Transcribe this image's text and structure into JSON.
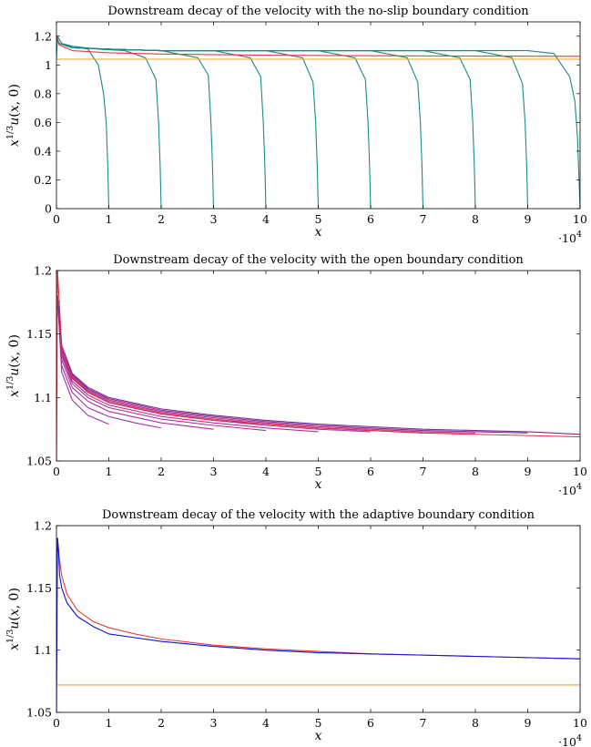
{
  "chart_data": [
    {
      "type": "line",
      "title": "Downstream decay of the velocity with the no-slip boundary condition",
      "xlabel": "x",
      "ylabel": "x^{1/3}u(x,0)",
      "x_multiplier": "·10^4",
      "xlim": [
        0,
        10
      ],
      "ylim": [
        0,
        1.3
      ],
      "xticks": [
        "0",
        "1",
        "2",
        "3",
        "4",
        "5",
        "6",
        "7",
        "8",
        "9",
        "10"
      ],
      "yticks": [
        "0",
        "0.2",
        "0.4",
        "0.6",
        "0.8",
        "1",
        "1.2"
      ],
      "ytick_values": [
        0,
        0.2,
        0.4,
        0.6,
        0.8,
        1.0,
        1.2
      ],
      "grid": false,
      "series": [
        {
          "color": "#1a8a8a",
          "x": [
            0,
            0.02,
            0.1,
            0.3,
            0.6,
            0.8,
            0.9,
            0.95,
            0.98,
            1.0
          ],
          "y": [
            1.05,
            1.2,
            1.15,
            1.13,
            1.11,
            1.0,
            0.8,
            0.6,
            0.3,
            0.0
          ]
        },
        {
          "color": "#1a8a8a",
          "x": [
            0,
            0.05,
            0.3,
            0.8,
            1.3,
            1.7,
            1.9,
            1.95,
            1.98,
            2.0
          ],
          "y": [
            1.2,
            1.15,
            1.13,
            1.11,
            1.1,
            1.05,
            0.9,
            0.6,
            0.3,
            0.0
          ]
        },
        {
          "color": "#1a8a8a",
          "x": [
            0,
            0.05,
            0.3,
            1,
            2,
            2.7,
            2.9,
            2.95,
            2.98,
            3.0
          ],
          "y": [
            1.2,
            1.15,
            1.12,
            1.11,
            1.1,
            1.05,
            0.93,
            0.6,
            0.3,
            0.0
          ]
        },
        {
          "color": "#1a8a8a",
          "x": [
            0,
            0.05,
            0.3,
            1,
            2,
            3,
            3.7,
            3.9,
            3.95,
            3.98,
            4.0
          ],
          "y": [
            1.2,
            1.15,
            1.12,
            1.11,
            1.1,
            1.1,
            1.05,
            0.92,
            0.6,
            0.3,
            0.0
          ]
        },
        {
          "color": "#1a8a8a",
          "x": [
            0,
            0.05,
            0.3,
            1,
            2,
            3,
            4,
            4.7,
            4.9,
            4.95,
            4.98,
            5.0
          ],
          "y": [
            1.2,
            1.15,
            1.12,
            1.11,
            1.1,
            1.1,
            1.1,
            1.05,
            0.88,
            0.6,
            0.3,
            0.0
          ]
        },
        {
          "color": "#1a8a8a",
          "x": [
            0,
            0.05,
            0.3,
            1,
            2,
            3,
            4,
            5,
            5.7,
            5.9,
            5.95,
            5.98,
            6.0
          ],
          "y": [
            1.2,
            1.15,
            1.12,
            1.11,
            1.1,
            1.1,
            1.1,
            1.1,
            1.05,
            0.9,
            0.6,
            0.3,
            0.0
          ]
        },
        {
          "color": "#1a8a8a",
          "x": [
            0,
            0.05,
            0.3,
            1,
            2,
            3,
            4,
            5,
            6,
            6.7,
            6.9,
            6.95,
            6.98,
            7.0
          ],
          "y": [
            1.2,
            1.15,
            1.12,
            1.11,
            1.1,
            1.1,
            1.1,
            1.1,
            1.1,
            1.05,
            0.88,
            0.6,
            0.3,
            0.0
          ]
        },
        {
          "color": "#1a8a8a",
          "x": [
            0,
            0.05,
            0.3,
            1,
            2,
            3,
            4,
            5,
            6,
            7,
            7.7,
            7.9,
            7.95,
            7.98,
            8.0
          ],
          "y": [
            1.2,
            1.15,
            1.12,
            1.11,
            1.1,
            1.1,
            1.1,
            1.1,
            1.1,
            1.1,
            1.05,
            0.9,
            0.6,
            0.3,
            0.0
          ]
        },
        {
          "color": "#1a8a8a",
          "x": [
            0,
            0.05,
            0.3,
            1,
            2,
            3,
            4,
            5,
            6,
            7,
            8,
            8.7,
            8.9,
            8.95,
            8.98,
            9.0
          ],
          "y": [
            1.2,
            1.15,
            1.12,
            1.11,
            1.1,
            1.1,
            1.1,
            1.1,
            1.1,
            1.1,
            1.1,
            1.05,
            0.87,
            0.6,
            0.3,
            0.0
          ]
        },
        {
          "color": "#1a8a8a",
          "x": [
            0,
            0.05,
            0.3,
            1,
            2,
            3,
            4,
            5,
            6,
            7,
            8,
            9,
            9.5,
            9.8,
            9.9,
            9.95,
            10.0
          ],
          "y": [
            1.2,
            1.15,
            1.12,
            1.11,
            1.1,
            1.1,
            1.1,
            1.1,
            1.1,
            1.1,
            1.1,
            1.1,
            1.08,
            0.92,
            0.75,
            0.5,
            0.0
          ]
        },
        {
          "color": "#e03c3c",
          "x": [
            0,
            0.05,
            0.3,
            1,
            2,
            4,
            6,
            8,
            10
          ],
          "y": [
            1.2,
            1.14,
            1.1,
            1.085,
            1.076,
            1.068,
            1.064,
            1.062,
            1.06
          ]
        },
        {
          "color": "#f0a020",
          "x": [
            0,
            10
          ],
          "y": [
            1.04,
            1.04
          ]
        }
      ]
    },
    {
      "type": "line",
      "title": "Downstream decay of the velocity with the open boundary condition",
      "xlabel": "x",
      "ylabel": "x^{1/3}u(x,0)",
      "x_multiplier": "·10^4",
      "xlim": [
        0,
        10
      ],
      "ylim": [
        1.05,
        1.2
      ],
      "xticks": [
        "0",
        "1",
        "2",
        "3",
        "4",
        "5",
        "6",
        "7",
        "8",
        "9",
        "10"
      ],
      "yticks": [
        "1.05",
        "1.1",
        "1.15",
        "1.2"
      ],
      "ytick_values": [
        1.05,
        1.1,
        1.15,
        1.2
      ],
      "grid": false,
      "series": [
        {
          "color": "#a030a8",
          "x": [
            0.02,
            0.1,
            0.3,
            0.6,
            1.0
          ],
          "y": [
            1.18,
            1.12,
            1.098,
            1.086,
            1.079
          ]
        },
        {
          "color": "#a430a4",
          "x": [
            0.02,
            0.1,
            0.3,
            0.6,
            1.0,
            1.5,
            2.0
          ],
          "y": [
            1.18,
            1.125,
            1.104,
            1.092,
            1.085,
            1.08,
            1.076
          ]
        },
        {
          "color": "#a830a0",
          "x": [
            0.02,
            0.1,
            0.3,
            0.6,
            1.0,
            2.0,
            3.0
          ],
          "y": [
            1.18,
            1.13,
            1.108,
            1.097,
            1.089,
            1.08,
            1.075
          ]
        },
        {
          "color": "#ac309c",
          "x": [
            0.02,
            0.1,
            0.3,
            0.6,
            1.0,
            2.0,
            3.0,
            4.0
          ],
          "y": [
            1.18,
            1.133,
            1.111,
            1.1,
            1.092,
            1.083,
            1.078,
            1.074
          ]
        },
        {
          "color": "#b03098",
          "x": [
            0.02,
            0.1,
            0.3,
            0.6,
            1.0,
            2.0,
            3.0,
            4.0,
            5.0
          ],
          "y": [
            1.18,
            1.135,
            1.113,
            1.102,
            1.094,
            1.085,
            1.08,
            1.076,
            1.073
          ]
        },
        {
          "color": "#b43094",
          "x": [
            0.02,
            0.1,
            0.3,
            0.6,
            1.0,
            2.0,
            3.0,
            4.0,
            5.0,
            6.0
          ],
          "y": [
            1.18,
            1.137,
            1.115,
            1.104,
            1.096,
            1.087,
            1.082,
            1.078,
            1.075,
            1.073
          ]
        },
        {
          "color": "#b83090",
          "x": [
            0.02,
            0.1,
            0.3,
            0.6,
            1.0,
            2.0,
            3.0,
            4.0,
            5.0,
            6.0,
            7.0
          ],
          "y": [
            1.18,
            1.138,
            1.116,
            1.105,
            1.097,
            1.088,
            1.083,
            1.079,
            1.076,
            1.074,
            1.072
          ]
        },
        {
          "color": "#bc308c",
          "x": [
            0.02,
            0.1,
            0.3,
            0.6,
            1.0,
            2.0,
            3.0,
            4.0,
            5.0,
            6.0,
            7.0,
            8.0
          ],
          "y": [
            1.18,
            1.139,
            1.117,
            1.106,
            1.098,
            1.089,
            1.084,
            1.08,
            1.077,
            1.075,
            1.073,
            1.072
          ]
        },
        {
          "color": "#8a2a9a",
          "x": [
            0.02,
            0.1,
            0.3,
            0.6,
            1.0,
            2.0,
            3.0,
            4.0,
            5.0,
            6.0,
            7.0,
            8.0,
            9.0
          ],
          "y": [
            1.18,
            1.14,
            1.118,
            1.107,
            1.099,
            1.09,
            1.085,
            1.081,
            1.078,
            1.076,
            1.074,
            1.073,
            1.072
          ]
        },
        {
          "color": "#7a2a92",
          "x": [
            0.02,
            0.1,
            0.3,
            0.6,
            1.0,
            2.0,
            3.0,
            4.0,
            5.0,
            6.0,
            7.0,
            8.0,
            9.0,
            10.0
          ],
          "y": [
            1.18,
            1.141,
            1.119,
            1.108,
            1.1,
            1.091,
            1.086,
            1.082,
            1.079,
            1.077,
            1.075,
            1.074,
            1.073,
            1.071
          ]
        },
        {
          "color": "#e03040",
          "x": [
            0.0,
            0.02,
            0.1,
            0.3,
            0.6,
            1.0,
            2.0,
            3.0,
            4.0,
            5.0,
            6.0,
            7.0,
            8.0,
            9.0,
            10.0
          ],
          "y": [
            1.05,
            1.2,
            1.14,
            1.116,
            1.104,
            1.096,
            1.087,
            1.082,
            1.079,
            1.076,
            1.074,
            1.072,
            1.071,
            1.07,
            1.069
          ]
        }
      ]
    },
    {
      "type": "line",
      "title": "Downstream decay of the velocity with the adaptive boundary condition",
      "xlabel": "x",
      "ylabel": "x^{1/3}u(x,0)",
      "x_multiplier": "·10^4",
      "xlim": [
        0,
        10
      ],
      "ylim": [
        1.05,
        1.2
      ],
      "xticks": [
        "0",
        "1",
        "2",
        "3",
        "4",
        "5",
        "6",
        "7",
        "8",
        "9",
        "10"
      ],
      "yticks": [
        "1.05",
        "1.1",
        "1.15",
        "1.2"
      ],
      "ytick_values": [
        1.05,
        1.1,
        1.15,
        1.2
      ],
      "grid": false,
      "series": [
        {
          "color": "#e03c3c",
          "x": [
            0.02,
            0.05,
            0.1,
            0.2,
            0.4,
            0.7,
            1.0,
            1.5,
            2.0,
            3.0,
            4.0,
            5.0,
            6.0,
            7.0,
            8.0,
            9.0,
            10.0
          ],
          "y": [
            1.19,
            1.175,
            1.16,
            1.145,
            1.132,
            1.123,
            1.118,
            1.113,
            1.109,
            1.104,
            1.101,
            1.099,
            1.097,
            1.096,
            1.095,
            1.094,
            1.093
          ]
        },
        {
          "color": "#1010e0",
          "x": [
            0.0,
            0.02,
            0.04,
            0.06,
            0.1,
            0.2,
            0.4,
            0.7,
            1.0,
            1.5,
            2.0,
            3.0,
            4.0,
            5.0,
            6.0,
            7.0,
            8.0,
            9.0,
            10.0
          ],
          "y": [
            1.05,
            1.19,
            1.18,
            1.16,
            1.15,
            1.138,
            1.127,
            1.119,
            1.113,
            1.11,
            1.107,
            1.103,
            1.1,
            1.098,
            1.097,
            1.096,
            1.095,
            1.094,
            1.093
          ]
        },
        {
          "color": "#f0a020",
          "x": [
            0,
            10
          ],
          "y": [
            1.072,
            1.072
          ]
        }
      ]
    }
  ]
}
